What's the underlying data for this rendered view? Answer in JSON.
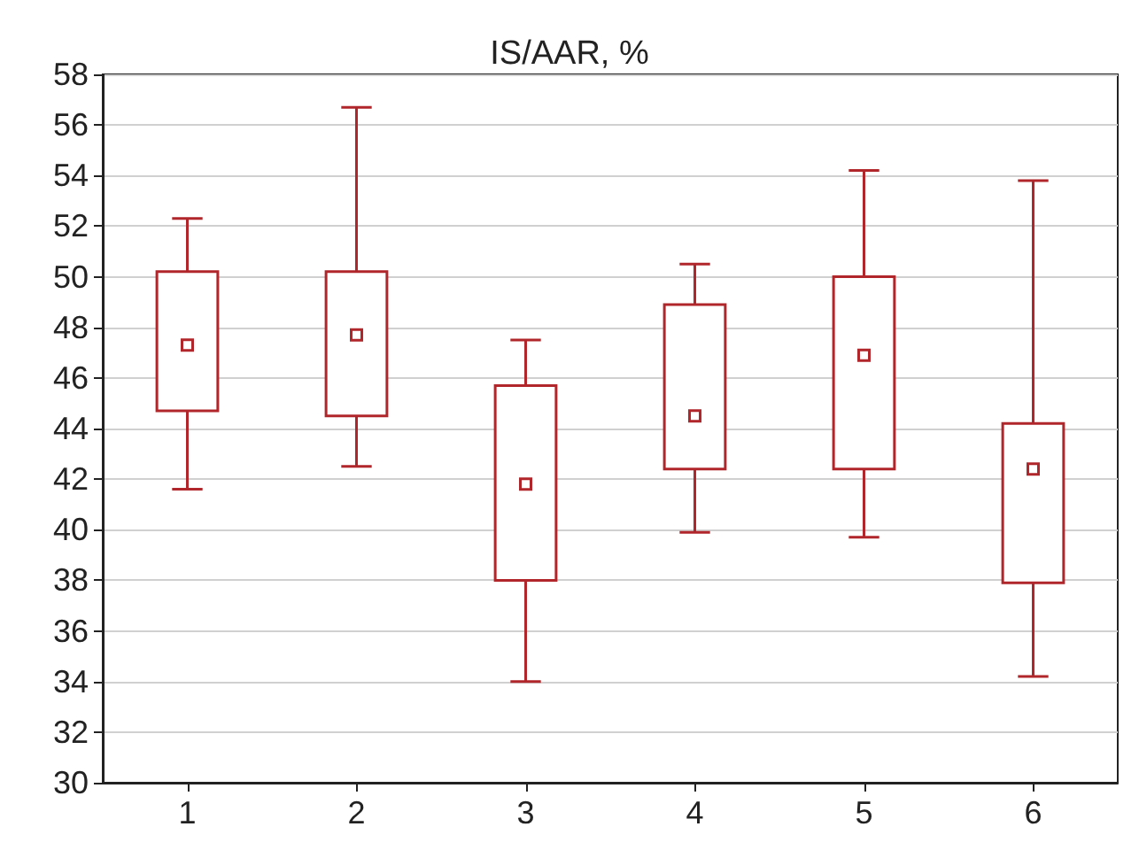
{
  "chart_data": {
    "type": "box",
    "title": "IS/AAR, %",
    "categories": [
      "1",
      "2",
      "3",
      "4",
      "5",
      "6"
    ],
    "series": [
      {
        "color": "#b0262a",
        "boxes": [
          {
            "low": 41.6,
            "q1": 44.7,
            "median": 47.3,
            "q3": 50.2,
            "high": 52.3
          },
          {
            "low": 42.5,
            "q1": 44.5,
            "median": 47.7,
            "q3": 50.2,
            "high": 56.7
          },
          {
            "low": 34.0,
            "q1": 38.0,
            "median": 41.8,
            "q3": 45.7,
            "high": 47.5
          },
          {
            "low": 39.9,
            "q1": 42.4,
            "median": 44.5,
            "q3": 48.9,
            "high": 50.5
          },
          {
            "low": 39.7,
            "q1": 42.4,
            "median": 46.9,
            "q3": 50.0,
            "high": 54.2
          },
          {
            "low": 34.2,
            "q1": 37.9,
            "median": 42.4,
            "q3": 44.2,
            "high": 53.8
          }
        ]
      }
    ],
    "ylim": [
      30,
      58
    ],
    "yticks": [
      30,
      32,
      34,
      36,
      38,
      40,
      42,
      44,
      46,
      48,
      50,
      52,
      54,
      56,
      58
    ],
    "grid": "y",
    "marker": "square"
  }
}
